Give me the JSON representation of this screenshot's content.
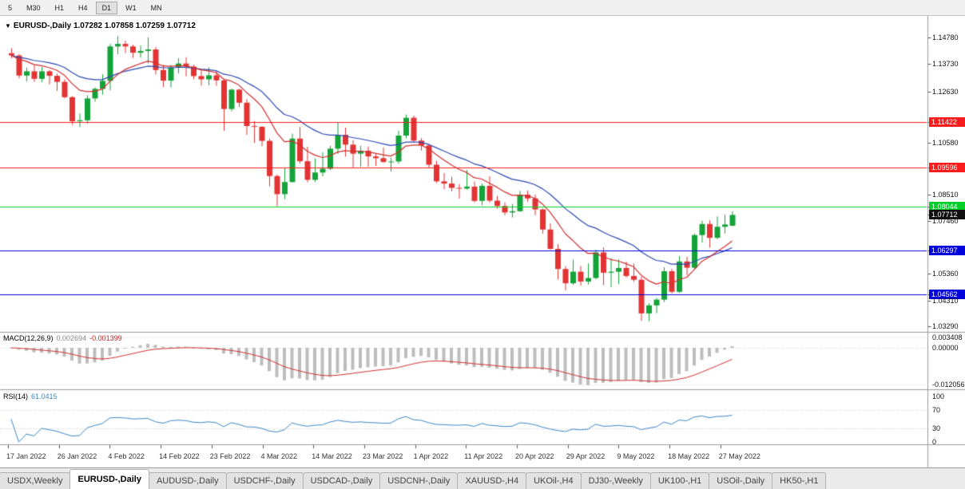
{
  "toolbar": {
    "timeframes": [
      "5",
      "M30",
      "H1",
      "H4",
      "D1",
      "W1",
      "MN"
    ],
    "active": "D1"
  },
  "chart": {
    "symbol_label": "EURUSD-,Daily",
    "ohlc_text": "1.07282 1.07858 1.07259 1.07712",
    "open": "1.07282",
    "high": "1.07858",
    "low": "1.07259",
    "close": "1.07712"
  },
  "indicators": {
    "macd": {
      "label": "MACD(12,26,9)",
      "value_main": "0.002694",
      "value_signal": "-0.001399",
      "axis_labels": [
        {
          "text": "0.003408",
          "value": 0.003408
        },
        {
          "text": "0.00000",
          "value": 0
        },
        {
          "text": "-0.012056",
          "value": -0.012056
        }
      ]
    },
    "rsi": {
      "label": "RSI(14)",
      "value": "61.0415",
      "levels": [
        70,
        30
      ],
      "axis_labels": [
        {
          "text": "100",
          "value": 100
        },
        {
          "text": "70",
          "value": 70
        },
        {
          "text": "30",
          "value": 30
        },
        {
          "text": "0",
          "value": 0
        }
      ]
    }
  },
  "price_axis": {
    "labels": [
      {
        "text": "1.14780",
        "price": 1.1478,
        "style": "plain"
      },
      {
        "text": "1.13730",
        "price": 1.1373,
        "style": "plain"
      },
      {
        "text": "1.12630",
        "price": 1.1263,
        "style": "plain"
      },
      {
        "text": "1.11422",
        "price": 1.11422,
        "style": "red-box"
      },
      {
        "text": "1.10580",
        "price": 1.1058,
        "style": "plain"
      },
      {
        "text": "1.09596",
        "price": 1.09596,
        "style": "red-box"
      },
      {
        "text": "1.08510",
        "price": 1.0851,
        "style": "plain"
      },
      {
        "text": "1.08044",
        "price": 1.08044,
        "style": "green-box"
      },
      {
        "text": "1.07712",
        "price": 1.07712,
        "style": "black-box"
      },
      {
        "text": "1.07460",
        "price": 1.0746,
        "style": "plain"
      },
      {
        "text": "1.06297",
        "price": 1.06297,
        "style": "blue-box"
      },
      {
        "text": "1.05360",
        "price": 1.0536,
        "style": "plain"
      },
      {
        "text": "1.04562",
        "price": 1.04562,
        "style": "blue-box"
      },
      {
        "text": "1.04310",
        "price": 1.0431,
        "style": "plain"
      },
      {
        "text": "1.03290",
        "price": 1.0329,
        "style": "plain"
      }
    ]
  },
  "time_axis": {
    "labels": [
      "17 Jan 2022",
      "26 Jan 2022",
      "4 Feb 2022",
      "14 Feb 2022",
      "23 Feb 2022",
      "4 Mar 2022",
      "14 Mar 2022",
      "23 Mar 2022",
      "1 Apr 2022",
      "11 Apr 2022",
      "20 Apr 2022",
      "29 Apr 2022",
      "9 May 2022",
      "18 May 2022",
      "27 May 2022"
    ]
  },
  "tabs": [
    {
      "label": "USDX,Weekly",
      "active": false
    },
    {
      "label": "EURUSD-,Daily",
      "active": true
    },
    {
      "label": "AUDUSD-,Daily",
      "active": false
    },
    {
      "label": "USDCHF-,Daily",
      "active": false
    },
    {
      "label": "USDCAD-,Daily",
      "active": false
    },
    {
      "label": "USDCNH-,Daily",
      "active": false
    },
    {
      "label": "XAUUSD-,H4",
      "active": false
    },
    {
      "label": "UKOil-,H4",
      "active": false
    },
    {
      "label": "DJ30-,Weekly",
      "active": false
    },
    {
      "label": "UK100-,H1",
      "active": false
    },
    {
      "label": "USOil-,Daily",
      "active": false
    },
    {
      "label": "HK50-,H1",
      "active": false
    }
  ],
  "colors": {
    "candle_up": "#14a339",
    "candle_down": "#e23434",
    "ma_fast": "#d32f2f",
    "ma_slow": "#2d49b5",
    "hline_red": "#f91c1c",
    "hline_green": "#00cf2a",
    "hline_blue": "#0202dd",
    "tag_black": "#101010",
    "macd_histogram": "#bdbdbd",
    "macd_signal": "#d32f2f",
    "rsi_line": "#3e86c8",
    "divider": "#9c9c9c"
  },
  "chart_data": {
    "type": "candlestick",
    "title": "EURUSD-,Daily",
    "current_bar": {
      "open": 1.07282,
      "high": 1.07858,
      "low": 1.07259,
      "close": 1.07712
    },
    "ylim": [
      1.0312,
      1.1538
    ],
    "y_axis_ticks": [
      1.1478,
      1.1373,
      1.1263,
      1.1058,
      1.0851,
      1.0746,
      1.0536,
      1.0431,
      1.0329
    ],
    "x_axis_labels": [
      "17 Jan 2022",
      "26 Jan 2022",
      "4 Feb 2022",
      "14 Feb 2022",
      "23 Feb 2022",
      "4 Mar 2022",
      "14 Mar 2022",
      "23 Mar 2022",
      "1 Apr 2022",
      "11 Apr 2022",
      "20 Apr 2022",
      "29 Apr 2022",
      "9 May 2022",
      "18 May 2022",
      "27 May 2022"
    ],
    "overlays": {
      "ma_fast": {
        "type": "EMA",
        "period": 10,
        "color": "#d32f2f"
      },
      "ma_slow": {
        "type": "EMA",
        "period": 21,
        "color": "#2d49b5"
      }
    },
    "horizontal_lines": [
      {
        "price": 1.11422,
        "color": "#f91c1c"
      },
      {
        "price": 1.09596,
        "color": "#f91c1c"
      },
      {
        "price": 1.08044,
        "color": "#00cf2a"
      },
      {
        "price": 1.06297,
        "color": "#0202dd"
      },
      {
        "price": 1.04562,
        "color": "#0202dd"
      }
    ],
    "sub_charts": [
      {
        "name": "MACD",
        "label": "MACD(12,26,9)",
        "type": "macd",
        "fast": 12,
        "slow": 26,
        "signal": 9,
        "axis_values": [
          0.003408,
          0,
          -0.012056
        ],
        "shown_values": [
          0.002694,
          -0.001399
        ]
      },
      {
        "name": "RSI",
        "label": "RSI(14)",
        "type": "line",
        "period": 14,
        "axis_values": [
          100,
          70,
          30,
          0
        ],
        "levels": [
          70,
          30
        ],
        "shown_value": 61.0415
      }
    ],
    "candles": {
      "open": [
        1.1415,
        1.1406,
        1.1326,
        1.1343,
        1.1313,
        1.1343,
        1.1325,
        1.1301,
        1.124,
        1.1144,
        1.1148,
        1.1235,
        1.1273,
        1.1305,
        1.1442,
        1.1452,
        1.1442,
        1.1417,
        1.1424,
        1.143,
        1.1348,
        1.1306,
        1.1358,
        1.1374,
        1.1362,
        1.1324,
        1.1311,
        1.1327,
        1.1307,
        1.1193,
        1.127,
        1.1218,
        1.1125,
        1.1122,
        1.1066,
        1.0926,
        1.0854,
        1.0902,
        1.1075,
        1.0985,
        1.0911,
        1.094,
        1.0955,
        1.1035,
        1.109,
        1.1051,
        1.1015,
        1.1027,
        1.1004,
        1.0997,
        1.0982,
        1.0984,
        1.1087,
        1.1158,
        1.1067,
        1.1048,
        1.0971,
        1.0905,
        1.0896,
        1.0879,
        1.0876,
        1.0884,
        1.0827,
        1.0887,
        1.0828,
        1.0807,
        1.0781,
        1.0786,
        1.0852,
        1.0837,
        1.0793,
        1.0713,
        1.0636,
        1.0556,
        1.0499,
        1.0545,
        1.0506,
        1.052,
        1.0622,
        1.0541,
        1.0545,
        1.056,
        1.0528,
        1.0513,
        1.0379,
        1.0411,
        1.0434,
        1.0547,
        1.0465,
        1.0586,
        1.0561,
        1.0691,
        1.0735,
        1.068,
        1.0724,
        1.07282
      ],
      "high": [
        1.1435,
        1.1412,
        1.1357,
        1.1369,
        1.136,
        1.1348,
        1.1334,
        1.1311,
        1.1244,
        1.1175,
        1.1248,
        1.1279,
        1.1331,
        1.1452,
        1.1483,
        1.1465,
        1.1449,
        1.1446,
        1.1478,
        1.144,
        1.1369,
        1.1368,
        1.1395,
        1.1399,
        1.1369,
        1.1345,
        1.1359,
        1.1343,
        1.1313,
        1.1274,
        1.1273,
        1.1232,
        1.1145,
        1.1125,
        1.1075,
        1.0932,
        1.0959,
        1.1095,
        1.1121,
        1.1043,
        1.0997,
        1.102,
        1.1046,
        1.1138,
        1.1119,
        1.1069,
        1.1046,
        1.1044,
        1.1014,
        1.1039,
        1.0999,
        1.1107,
        1.1171,
        1.1166,
        1.1077,
        1.1054,
        1.0986,
        1.0938,
        1.0923,
        1.0894,
        1.095,
        1.0904,
        1.0896,
        1.0925,
        1.0847,
        1.0821,
        1.0815,
        1.0867,
        1.0868,
        1.0852,
        1.0797,
        1.0738,
        1.0655,
        1.0567,
        1.0593,
        1.0568,
        1.0578,
        1.0632,
        1.0642,
        1.0599,
        1.0594,
        1.0585,
        1.0578,
        1.0525,
        1.0419,
        1.0441,
        1.0563,
        1.0556,
        1.0607,
        1.0604,
        1.0697,
        1.0748,
        1.075,
        1.0765,
        1.0773,
        1.07858
      ],
      "low": [
        1.1395,
        1.1315,
        1.1303,
        1.1301,
        1.13,
        1.1291,
        1.1264,
        1.1235,
        1.113,
        1.1121,
        1.1135,
        1.1222,
        1.125,
        1.1267,
        1.1411,
        1.1415,
        1.1396,
        1.1398,
        1.1374,
        1.133,
        1.128,
        1.1279,
        1.1335,
        1.1323,
        1.1312,
        1.1286,
        1.1287,
        1.1285,
        1.1106,
        1.1184,
        1.1201,
        1.109,
        1.1058,
        1.1045,
        1.0885,
        1.0806,
        1.0834,
        1.09,
        1.0976,
        1.0901,
        1.0902,
        1.0925,
        1.095,
        1.1014,
        1.1003,
        1.0961,
        1.0963,
        1.0963,
        1.0966,
        1.0979,
        1.0944,
        1.0975,
        1.1076,
        1.1061,
        1.1027,
        1.096,
        1.0898,
        1.0874,
        1.0865,
        1.0836,
        1.0871,
        1.0821,
        1.081,
        1.082,
        1.0796,
        1.077,
        1.0761,
        1.0783,
        1.0824,
        1.077,
        1.0697,
        1.0633,
        1.0514,
        1.0471,
        1.0492,
        1.049,
        1.0494,
        1.0515,
        1.0492,
        1.0483,
        1.0495,
        1.0522,
        1.0505,
        1.035,
        1.0348,
        1.038,
        1.0424,
        1.0459,
        1.0461,
        1.0532,
        1.0556,
        1.0661,
        1.0641,
        1.0674,
        1.0697,
        1.07259
      ],
      "close": [
        1.1406,
        1.1326,
        1.1343,
        1.1313,
        1.1343,
        1.1325,
        1.1301,
        1.124,
        1.1144,
        1.1148,
        1.1235,
        1.1273,
        1.1305,
        1.1442,
        1.1452,
        1.1442,
        1.1417,
        1.1424,
        1.143,
        1.1348,
        1.1306,
        1.1358,
        1.1374,
        1.1362,
        1.1324,
        1.1311,
        1.1327,
        1.1307,
        1.1193,
        1.127,
        1.1218,
        1.1125,
        1.1122,
        1.1066,
        1.0926,
        1.0854,
        1.0902,
        1.1075,
        1.0985,
        1.0911,
        1.094,
        1.0955,
        1.1035,
        1.109,
        1.1051,
        1.1015,
        1.1027,
        1.1004,
        1.0997,
        1.0982,
        1.0984,
        1.1087,
        1.1158,
        1.1067,
        1.1048,
        1.0971,
        1.0905,
        1.0896,
        1.0879,
        1.0876,
        1.0884,
        1.0827,
        1.0887,
        1.0828,
        1.0807,
        1.0781,
        1.0786,
        1.0852,
        1.0837,
        1.0793,
        1.0713,
        1.0636,
        1.0556,
        1.0499,
        1.0545,
        1.0506,
        1.052,
        1.0622,
        1.0541,
        1.0545,
        1.056,
        1.0528,
        1.0513,
        1.0379,
        1.0411,
        1.0434,
        1.0547,
        1.0465,
        1.0586,
        1.0561,
        1.0691,
        1.0735,
        1.068,
        1.0724,
        1.0733,
        1.07712
      ]
    }
  }
}
